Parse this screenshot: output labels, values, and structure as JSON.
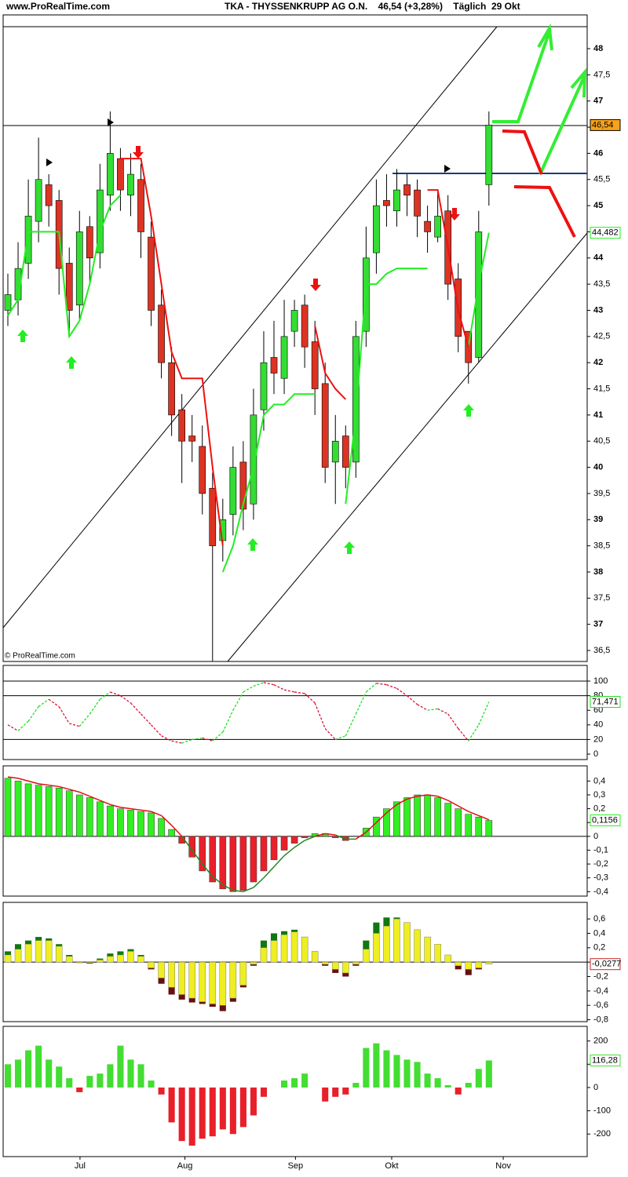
{
  "chart_data": [
    {
      "type": "candlestick",
      "title": "TKA - THYSSENKRUPP AG O.N.    46,54 (+3,28%)    Täglich  29 Okt",
      "source": "www.ProRealTime.com",
      "watermark": "© ProRealTime.com",
      "open": [
        43.0,
        43.2,
        43.9,
        44.7,
        45.4,
        45.1,
        43.9,
        43.1,
        44.6,
        44.1,
        45.2,
        45.9,
        45.2,
        45.5,
        44.4,
        43.1,
        42.0,
        41.1,
        40.6,
        40.4,
        39.6,
        38.6,
        39.1,
        40.1,
        39.3,
        41.1,
        42.1,
        41.7,
        42.6,
        43.1,
        42.4,
        41.6,
        40.1,
        40.6,
        40.1,
        42.6,
        44.1,
        45.1,
        44.9,
        45.4,
        45.3,
        44.7,
        44.4,
        44.9,
        43.6,
        42.6,
        42.1,
        45.4
      ],
      "high": [
        43.7,
        44.3,
        45.5,
        46.3,
        45.6,
        45.3,
        44.2,
        44.9,
        44.8,
        45.8,
        46.8,
        46.1,
        46.0,
        45.8,
        44.7,
        43.4,
        42.3,
        41.4,
        41.0,
        40.8,
        39.9,
        39.4,
        40.4,
        40.5,
        41.5,
        42.6,
        42.8,
        43.2,
        43.2,
        43.3,
        42.8,
        42.0,
        41.0,
        40.8,
        42.8,
        44.6,
        45.5,
        45.6,
        45.7,
        45.6,
        45.5,
        45.0,
        45.3,
        45.2,
        43.9,
        42.6,
        44.9,
        46.8
      ],
      "low": [
        42.7,
        42.9,
        43.6,
        44.3,
        44.6,
        43.3,
        42.5,
        42.8,
        43.5,
        43.8,
        44.9,
        44.9,
        44.8,
        44.0,
        42.7,
        41.7,
        40.6,
        39.7,
        40.1,
        39.1,
        36.3,
        38.2,
        38.7,
        38.8,
        39.0,
        40.7,
        41.4,
        41.4,
        42.3,
        41.9,
        41.0,
        39.7,
        39.3,
        39.6,
        39.8,
        42.3,
        43.7,
        44.6,
        44.6,
        44.8,
        44.4,
        44.1,
        44.3,
        43.2,
        42.2,
        41.6,
        42.0,
        45.0
      ],
      "close": [
        43.3,
        43.8,
        44.8,
        45.5,
        45.0,
        43.8,
        43.0,
        44.5,
        44.0,
        45.3,
        46.0,
        45.3,
        45.6,
        44.5,
        43.0,
        42.0,
        41.0,
        40.5,
        40.5,
        39.5,
        38.5,
        39.0,
        40.0,
        39.2,
        41.0,
        42.0,
        41.8,
        42.5,
        43.0,
        42.3,
        41.5,
        40.0,
        40.5,
        40.0,
        42.5,
        44.0,
        45.0,
        45.0,
        45.3,
        45.2,
        44.8,
        44.5,
        44.8,
        43.5,
        42.5,
        42.0,
        44.5,
        46.54
      ],
      "last_label": "46,54",
      "series": [
        {
          "name": "support",
          "color": "#22ee22",
          "last_label": "44,482",
          "values": [
            42.9,
            43.2,
            44.5,
            44.5,
            44.5,
            44.5,
            42.5,
            42.8,
            43.5,
            44.5,
            45.0,
            45.2,
            null,
            null,
            null,
            null,
            null,
            null,
            null,
            null,
            null,
            38.0,
            38.5,
            39.3,
            40.0,
            41.0,
            41.2,
            41.2,
            41.4,
            41.4,
            41.4,
            null,
            null,
            39.3,
            41.0,
            43.5,
            43.5,
            43.7,
            43.8,
            43.8,
            43.8,
            43.8,
            null,
            null,
            null,
            42.3,
            43.5,
            44.482
          ]
        },
        {
          "name": "resistance",
          "color": "#ee1111",
          "values": [
            null,
            null,
            null,
            null,
            null,
            null,
            null,
            null,
            null,
            null,
            null,
            45.9,
            45.9,
            45.9,
            44.8,
            43.5,
            42.2,
            41.7,
            41.7,
            41.7,
            40.0,
            38.5,
            null,
            null,
            null,
            null,
            null,
            null,
            null,
            null,
            42.7,
            41.8,
            41.5,
            41.3,
            null,
            null,
            null,
            null,
            null,
            null,
            null,
            45.3,
            45.3,
            44.2,
            43.0,
            42.3,
            null,
            null
          ]
        }
      ],
      "ylim": [
        36.29,
        48.42
      ],
      "yticks": [
        {
          "value": 36.5,
          "label": "36,5"
        },
        37,
        {
          "value": 37.5,
          "label": "37,5"
        },
        38,
        {
          "value": 38.5,
          "label": "38,5"
        },
        39,
        {
          "value": 39.5,
          "label": "39,5"
        },
        40,
        {
          "value": 40.5,
          "label": "40,5"
        },
        41,
        {
          "value": 41.5,
          "label": "41,5"
        },
        42,
        {
          "value": 42.5,
          "label": "42,5"
        },
        43,
        {
          "value": 43.5,
          "label": "43,5"
        },
        44,
        {
          "value": 44.5,
          "label": "44,5"
        },
        45,
        {
          "value": 45.5,
          "label": "45,5"
        },
        46,
        {
          "value": 46.5,
          "label": "46,5"
        },
        47,
        {
          "value": 47.5,
          "label": "47,5"
        },
        48
      ],
      "up_color": "#33dd33",
      "down_color": "#dd3322"
    },
    {
      "type": "stochastic",
      "values": [
        40,
        32,
        45,
        65,
        75,
        65,
        42,
        38,
        55,
        75,
        85,
        80,
        70,
        55,
        40,
        25,
        18,
        15,
        20,
        22,
        18,
        30,
        60,
        85,
        93,
        98,
        95,
        88,
        85,
        83,
        70,
        35,
        20,
        25,
        55,
        85,
        97,
        95,
        90,
        80,
        68,
        60,
        62,
        55,
        35,
        18,
        40,
        71.471
      ],
      "last_label": "71,471",
      "up_color": "#22dd22",
      "down_color": "#dd1133",
      "levels": [
        100,
        80,
        20
      ],
      "ylim": [
        -7.5,
        121.5
      ],
      "yticks": [
        100,
        80,
        60,
        40,
        20,
        0
      ]
    },
    {
      "type": "histogram-line",
      "values": [
        0.42,
        0.4,
        0.38,
        0.37,
        0.36,
        0.35,
        0.33,
        0.3,
        0.28,
        0.25,
        0.22,
        0.2,
        0.19,
        0.18,
        0.17,
        0.13,
        0.05,
        -0.05,
        -0.15,
        -0.25,
        -0.33,
        -0.38,
        -0.4,
        -0.39,
        -0.33,
        -0.25,
        -0.17,
        -0.1,
        -0.05,
        -0.01,
        0.02,
        0.02,
        -0.01,
        -0.03,
        0.0,
        0.06,
        0.14,
        0.2,
        0.25,
        0.28,
        0.3,
        0.3,
        0.28,
        0.24,
        0.2,
        0.16,
        0.14,
        0.1156
      ],
      "signal": [
        0.43,
        0.42,
        0.4,
        0.38,
        0.37,
        0.36,
        0.34,
        0.32,
        0.29,
        0.26,
        0.23,
        0.21,
        0.2,
        0.19,
        0.18,
        0.15,
        0.08,
        0.0,
        -0.1,
        -0.2,
        -0.29,
        -0.35,
        -0.39,
        -0.4,
        -0.37,
        -0.3,
        -0.22,
        -0.14,
        -0.08,
        -0.03,
        0.0,
        0.02,
        0.01,
        -0.02,
        -0.02,
        0.03,
        0.1,
        0.17,
        0.23,
        0.27,
        0.29,
        0.3,
        0.29,
        0.26,
        0.22,
        0.18,
        0.15,
        0.12
      ],
      "last_label": "0,1156",
      "pos_color": "#33ee22",
      "neg_color": "#e8202a",
      "signal_pos_color": "#dd1111",
      "signal_neg_color": "#228822",
      "ylim": [
        -0.432,
        0.51
      ],
      "yticks": [
        {
          "value": 0.4,
          "label": "0,4"
        },
        {
          "value": 0.3,
          "label": "0,3"
        },
        {
          "value": 0.2,
          "label": "0,2"
        },
        {
          "value": 0.1,
          "label": "0,1"
        },
        0,
        {
          "value": -0.1,
          "label": "-0,1"
        },
        {
          "value": -0.2,
          "label": "-0,2"
        },
        {
          "value": -0.3,
          "label": "-0,3"
        },
        {
          "value": -0.4,
          "label": "-0,4"
        }
      ]
    },
    {
      "type": "dual-histogram",
      "outer": [
        0.15,
        0.25,
        0.3,
        0.35,
        0.33,
        0.25,
        0.1,
        0.0,
        -0.02,
        0.05,
        0.12,
        0.15,
        0.18,
        0.1,
        -0.1,
        -0.3,
        -0.45,
        -0.52,
        -0.56,
        -0.58,
        -0.62,
        -0.68,
        -0.55,
        -0.35,
        -0.05,
        0.3,
        0.4,
        0.43,
        0.45,
        0.35,
        0.15,
        -0.05,
        -0.15,
        -0.2,
        -0.05,
        0.3,
        0.55,
        0.62,
        0.62,
        0.55,
        0.45,
        0.35,
        0.25,
        0.1,
        -0.1,
        -0.18,
        -0.1,
        -0.0277
      ],
      "values": [
        0.1,
        0.18,
        0.25,
        0.3,
        0.3,
        0.22,
        0.08,
        -0.01,
        -0.01,
        0.03,
        0.08,
        0.1,
        0.15,
        0.08,
        -0.08,
        -0.22,
        -0.35,
        -0.45,
        -0.5,
        -0.55,
        -0.58,
        -0.6,
        -0.5,
        -0.32,
        -0.03,
        0.2,
        0.3,
        0.38,
        0.42,
        0.35,
        0.15,
        -0.03,
        -0.1,
        -0.15,
        -0.03,
        0.18,
        0.4,
        0.5,
        0.6,
        0.55,
        0.45,
        0.35,
        0.25,
        0.1,
        -0.05,
        -0.1,
        -0.08,
        -0.0277
      ],
      "last_label": "-0,0277",
      "color": "#eeee22",
      "outer_pos_color": "#117711",
      "outer_neg_color": "#661111",
      "ylim": [
        -0.826,
        0.83
      ],
      "yticks": [
        {
          "value": 0.6,
          "label": "0,6"
        },
        {
          "value": 0.4,
          "label": "0,4"
        },
        {
          "value": 0.2,
          "label": "0,2"
        },
        0,
        {
          "value": -0.2,
          "label": "-0,2"
        },
        {
          "value": -0.4,
          "label": "-0,4"
        },
        {
          "value": -0.6,
          "label": "-0,6"
        },
        {
          "value": -0.8,
          "label": "-0,8"
        }
      ]
    },
    {
      "type": "histogram",
      "values": [
        100,
        120,
        160,
        180,
        120,
        90,
        40,
        -20,
        50,
        60,
        100,
        180,
        120,
        100,
        30,
        -30,
        -150,
        -230,
        -250,
        -220,
        -210,
        -180,
        -200,
        -170,
        -120,
        -40,
        0,
        30,
        40,
        60,
        0,
        -60,
        -40,
        -30,
        20,
        170,
        190,
        160,
        140,
        120,
        110,
        60,
        40,
        10,
        -30,
        20,
        80,
        116.28
      ],
      "last_label": "116,28",
      "pos_color": "#44dd33",
      "neg_color": "#e8202a",
      "ylim": [
        -297,
        263
      ],
      "yticks": [
        200,
        100,
        0,
        -100,
        -200
      ],
      "xlim": [
        -0.46,
        56.6
      ],
      "xticks": [
        {
          "value": 7.05,
          "label": "Jul"
        },
        {
          "value": 17.3,
          "label": "Aug"
        },
        {
          "value": 28.1,
          "label": "Sep"
        },
        {
          "value": 37.5,
          "label": "Okt"
        },
        {
          "value": 48.4,
          "label": "Nov"
        }
      ]
    }
  ]
}
